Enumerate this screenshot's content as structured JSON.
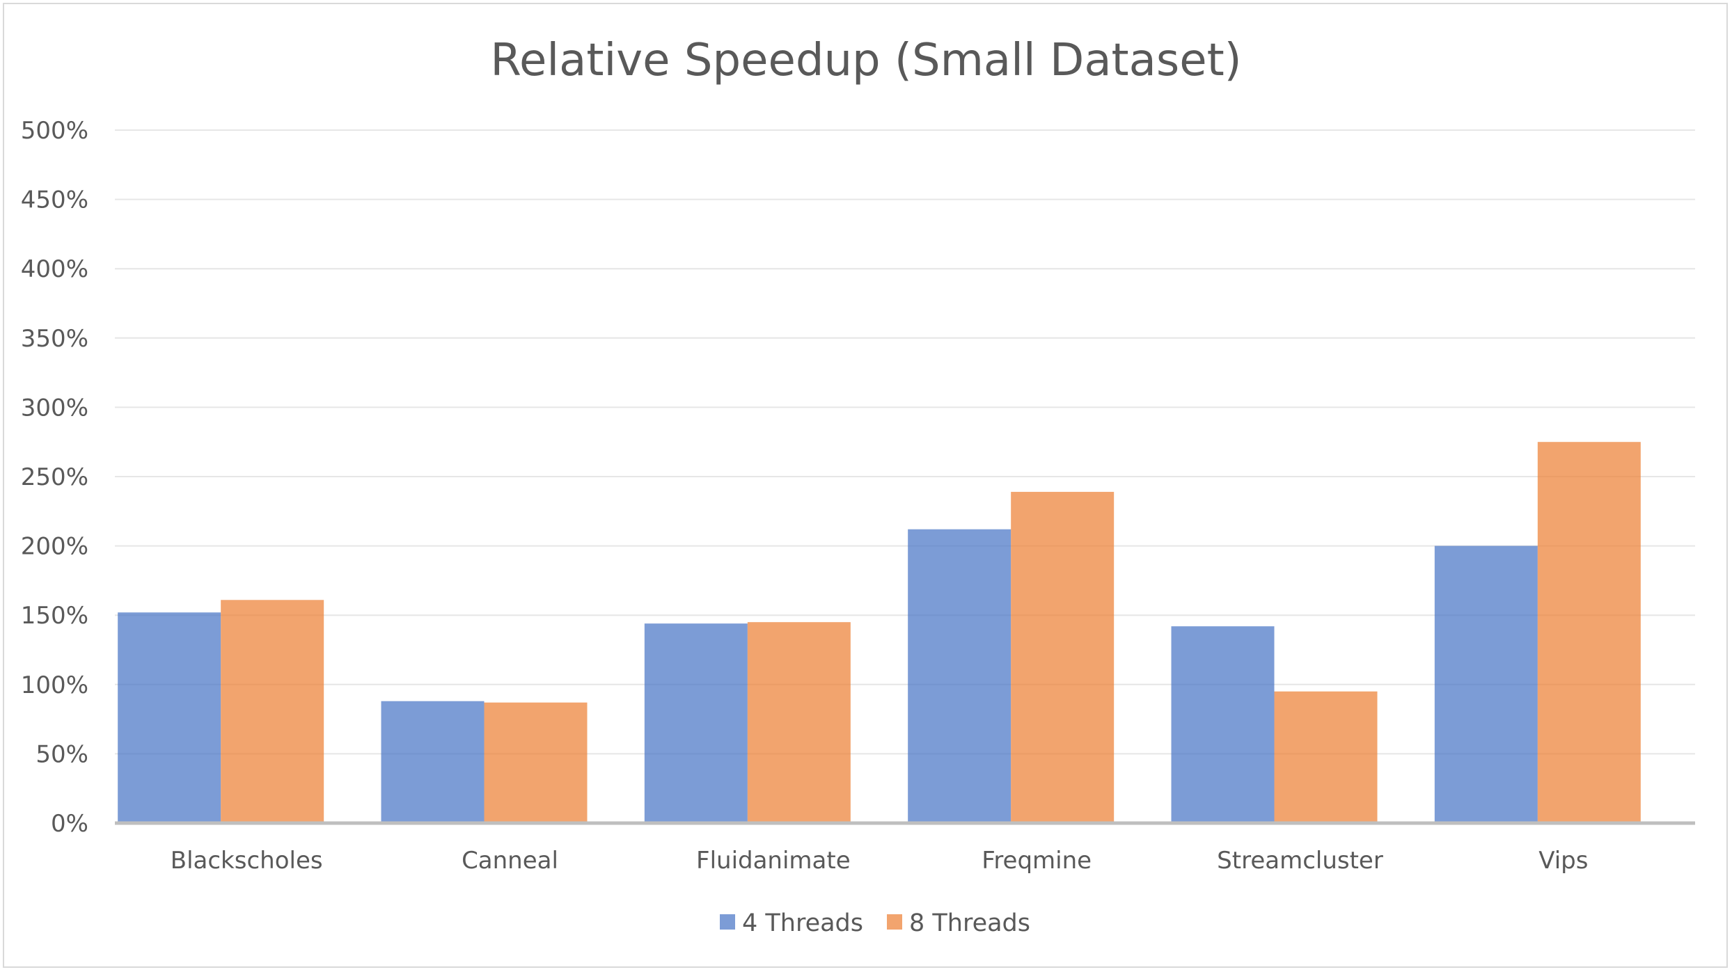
{
  "chart_data": {
    "type": "bar",
    "title": "Relative Speedup (Small Dataset)",
    "xlabel": "",
    "ylabel": "",
    "categories": [
      "Blackscholes",
      "Canneal",
      "Fluidanimate",
      "Freqmine",
      "Streamcluster",
      "Vips"
    ],
    "series": [
      {
        "name": "4 Threads",
        "color": "#4472C4",
        "values": [
          152,
          88,
          144,
          212,
          142,
          200
        ]
      },
      {
        "name": "8 Threads",
        "color": "#ED7D31",
        "values": [
          161,
          87,
          145,
          239,
          95,
          275
        ]
      }
    ],
    "ylim": [
      0,
      500
    ],
    "yticks": [
      "0%",
      "50%",
      "100%",
      "150%",
      "200%",
      "250%",
      "300%",
      "350%",
      "400%",
      "450%",
      "500%"
    ],
    "ytick_values": [
      0,
      50,
      100,
      150,
      200,
      250,
      300,
      350,
      400,
      450,
      500
    ],
    "grid": true,
    "legend_position": "bottom",
    "bar_opacity": 0.7,
    "overlap": true
  }
}
